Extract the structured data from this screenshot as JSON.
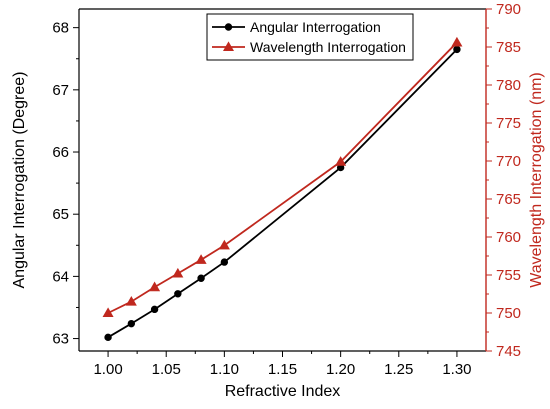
{
  "chart_data": {
    "type": "line",
    "xlabel": "Refractive Index",
    "ylabel_left": "Angular Interrogation (Degree)",
    "ylabel_right": "Wavelength Interrogation (nm)",
    "x": [
      1.0,
      1.02,
      1.04,
      1.06,
      1.08,
      1.1,
      1.2,
      1.3
    ],
    "xlim": [
      0.975,
      1.325
    ],
    "xticks": [
      "1.00",
      "1.05",
      "1.10",
      "1.15",
      "1.20",
      "1.25",
      "1.30"
    ],
    "ylim_left": [
      62.8,
      68.3
    ],
    "yticks_left": [
      "63",
      "64",
      "65",
      "66",
      "67",
      "68"
    ],
    "ylim_right": [
      745,
      790
    ],
    "yticks_right": [
      "745",
      "750",
      "755",
      "760",
      "765",
      "770",
      "775",
      "780",
      "785",
      "790"
    ],
    "grid": false,
    "legend_position": "top-center",
    "series": [
      {
        "name": "Angular Interrogation",
        "axis": "left",
        "color": "#000000",
        "marker": "circle",
        "values": [
          63.02,
          63.24,
          63.47,
          63.72,
          63.97,
          64.23,
          65.75,
          67.65
        ]
      },
      {
        "name": "Wavelength Interrogation",
        "axis": "right",
        "color": "#c0281e",
        "marker": "triangle",
        "values": [
          750.0,
          751.5,
          753.4,
          755.2,
          757.0,
          758.9,
          769.9,
          785.6
        ]
      }
    ],
    "right_axis_color": "#c0281e"
  }
}
